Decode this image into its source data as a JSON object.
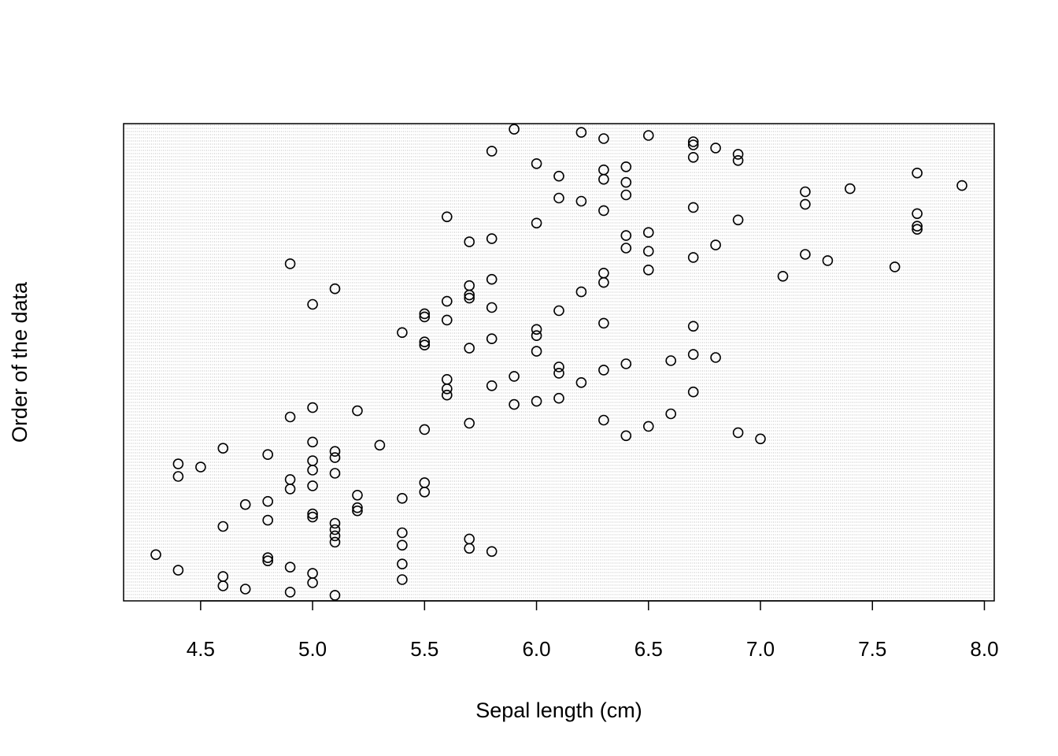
{
  "chart_data": {
    "type": "scatter",
    "title": "",
    "xlabel": "Sepal length (cm)",
    "ylabel": "Order of the data",
    "xlim": [
      4.3,
      7.9
    ],
    "ylim": [
      1,
      150
    ],
    "x_ticks": [
      "4.5",
      "5.0",
      "5.5",
      "6.0",
      "6.5",
      "7.0",
      "7.5",
      "8.0"
    ],
    "y_ticks_shown": false,
    "grid": "dense light grey dotted",
    "point_style": "open circle",
    "colors": {
      "point": "#000000",
      "grid": "#bdbdbd",
      "axis": "#000000"
    },
    "series": [
      {
        "x": [
          5.1,
          4.9,
          4.7,
          4.6,
          5.0,
          5.4,
          4.6,
          5.0,
          4.4,
          4.9,
          5.4,
          4.8,
          4.8,
          4.3,
          5.8,
          5.7,
          5.4,
          5.1,
          5.7,
          5.1,
          5.4,
          5.1,
          4.6,
          5.1,
          4.8,
          5.0,
          5.0,
          5.2,
          5.2,
          4.7,
          4.8,
          5.4,
          5.2,
          5.5,
          4.9,
          5.0,
          5.5,
          4.9,
          4.4,
          5.1,
          5.0,
          4.5,
          4.4,
          5.0,
          5.1,
          4.8,
          5.1,
          4.6,
          5.3,
          5.0,
          7.0,
          6.4,
          6.9,
          5.5,
          6.5,
          5.7,
          6.3,
          4.9,
          6.6,
          5.2,
          5.0,
          5.9,
          6.0,
          6.1,
          5.6,
          6.7,
          5.6,
          5.8,
          6.2,
          5.6,
          5.9,
          6.1,
          6.3,
          6.1,
          6.4,
          6.6,
          6.8,
          6.7,
          6.0,
          5.7,
          5.5,
          5.5,
          5.8,
          6.0,
          5.4,
          6.0,
          6.7,
          6.3,
          5.6,
          5.5,
          5.5,
          6.1,
          5.8,
          5.0,
          5.6,
          5.7,
          5.7,
          6.2,
          5.1,
          5.7,
          6.3,
          5.8,
          7.1,
          6.3,
          6.5,
          7.6,
          4.9,
          7.3,
          6.7,
          7.2,
          6.5,
          6.4,
          6.8,
          5.7,
          5.8,
          6.4,
          6.5,
          7.7,
          7.7,
          6.0,
          6.9,
          5.6,
          7.7,
          6.3,
          6.7,
          7.2,
          6.2,
          6.1,
          6.4,
          7.2,
          7.4,
          7.9,
          6.4,
          6.3,
          6.1,
          7.7,
          6.3,
          6.4,
          6.0,
          6.9,
          6.7,
          6.9,
          5.8,
          6.8,
          6.7,
          6.7,
          6.3,
          6.5,
          6.2,
          5.9
        ],
        "y": [
          1,
          2,
          3,
          4,
          5,
          6,
          7,
          8,
          9,
          10,
          11,
          12,
          13,
          14,
          15,
          16,
          17,
          18,
          19,
          20,
          21,
          22,
          23,
          24,
          25,
          26,
          27,
          28,
          29,
          30,
          31,
          32,
          33,
          34,
          35,
          36,
          37,
          38,
          39,
          40,
          41,
          42,
          43,
          44,
          45,
          46,
          47,
          48,
          49,
          50,
          51,
          52,
          53,
          54,
          55,
          56,
          57,
          58,
          59,
          60,
          61,
          62,
          63,
          64,
          65,
          66,
          67,
          68,
          69,
          70,
          71,
          72,
          73,
          74,
          75,
          76,
          77,
          78,
          79,
          80,
          81,
          82,
          83,
          84,
          85,
          86,
          87,
          88,
          89,
          90,
          91,
          92,
          93,
          94,
          95,
          96,
          97,
          98,
          99,
          100,
          101,
          102,
          103,
          104,
          105,
          106,
          107,
          108,
          109,
          110,
          111,
          112,
          113,
          114,
          115,
          116,
          117,
          118,
          119,
          120,
          121,
          122,
          123,
          124,
          125,
          126,
          127,
          128,
          129,
          130,
          131,
          132,
          133,
          134,
          135,
          136,
          137,
          138,
          139,
          140,
          141,
          142,
          143,
          144,
          145,
          146,
          147,
          148,
          149,
          150
        ]
      }
    ]
  }
}
